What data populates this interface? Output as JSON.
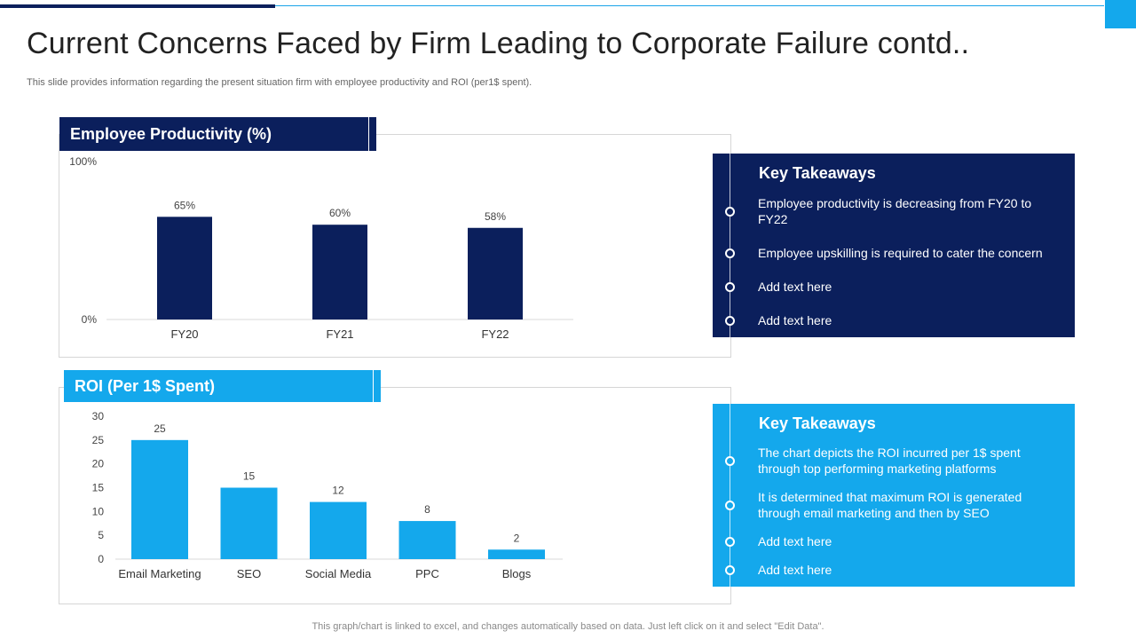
{
  "slide": {
    "title": "Current Concerns Faced by Firm Leading to Corporate Failure contd..",
    "subtitle": "This slide provides information regarding the present situation firm with employee productivity and ROI  (per1$ spent).",
    "footer": "This graph/chart is linked to excel,  and changes automatically based on data. Just left click on it and select \"Edit Data\"."
  },
  "colors": {
    "navy": "#0b1f5c",
    "sky": "#14a8ec",
    "accent_line": "#1aa3e8"
  },
  "productivity_panel": {
    "header": "Employee Productivity (%)",
    "takeaways": {
      "title": "Key Takeaways",
      "items": [
        "Employee productivity is decreasing from FY20 to FY22",
        "Employee upskilling is required to cater the concern",
        "Add text here",
        "Add text here"
      ]
    }
  },
  "roi_panel": {
    "header": "ROI (Per 1$ Spent)",
    "takeaways": {
      "title": "Key Takeaways",
      "items": [
        "The chart depicts the ROI incurred per 1$ spent through top performing marketing platforms",
        "It is determined that maximum ROI is generated through email marketing and then by SEO",
        "Add text here",
        "Add text here"
      ]
    }
  },
  "chart_data": [
    {
      "type": "bar",
      "title": "Employee Productivity (%)",
      "categories": [
        "FY20",
        "FY21",
        "FY22"
      ],
      "values": [
        65,
        60,
        58
      ],
      "value_labels": [
        "65%",
        "60%",
        "58%"
      ],
      "ylim": [
        0,
        100
      ],
      "y_tick_labels": [
        "0%",
        "100%"
      ],
      "color": "#0b1f5c",
      "xlabel": "",
      "ylabel": ""
    },
    {
      "type": "bar",
      "title": "ROI (Per 1$ Spent)",
      "categories": [
        "Email Marketing",
        "SEO",
        "Social Media",
        "PPC",
        "Blogs"
      ],
      "values": [
        25,
        15,
        12,
        8,
        2
      ],
      "value_labels": [
        "25",
        "15",
        "12",
        "8",
        "2"
      ],
      "ylim": [
        0,
        30
      ],
      "y_tick_labels": [
        "0",
        "5",
        "10",
        "15",
        "20",
        "25",
        "30"
      ],
      "color": "#14a8ec",
      "xlabel": "",
      "ylabel": ""
    }
  ]
}
